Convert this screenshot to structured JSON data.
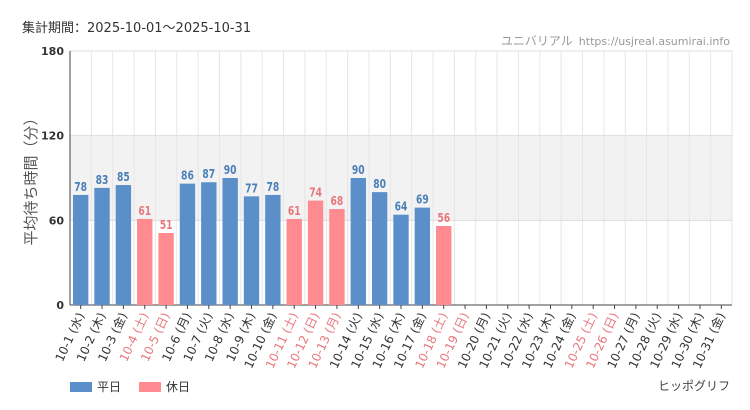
{
  "header": {
    "period_label": "集計期間：2025-10-01～2025-10-31",
    "source_name": "ユニバリアル",
    "source_url": "https://usjreal.asumirai.info",
    "brand": "ヒッポグリフ"
  },
  "colors": {
    "weekday": "#5b8fc9",
    "holiday": "#ff8a8f",
    "band": "#f2f2f2",
    "grid": "#e6e6e6",
    "axis": "#444444",
    "holiday_label": "#e8777c",
    "weekday_label": "#333333"
  },
  "legend": [
    {
      "name": "平日",
      "color": "#5b8fc9"
    },
    {
      "name": "休日",
      "color": "#ff8a8f"
    }
  ],
  "chart_data": {
    "type": "bar",
    "ylabel": "平均待ち時間（分）",
    "ylim": [
      0,
      180
    ],
    "yticks": [
      0,
      60,
      120,
      180
    ],
    "band": [
      60,
      120
    ],
    "categories": [
      "10-1 (水)",
      "10-2 (木)",
      "10-3 (金)",
      "10-4 (土)",
      "10-5 (日)",
      "10-6 (月)",
      "10-7 (火)",
      "10-8 (水)",
      "10-9 (木)",
      "10-10 (金)",
      "10-11 (土)",
      "10-12 (日)",
      "10-13 (月)",
      "10-14 (火)",
      "10-15 (水)",
      "10-16 (木)",
      "10-17 (金)",
      "10-18 (土)",
      "10-19 (日)",
      "10-20 (月)",
      "10-21 (火)",
      "10-22 (水)",
      "10-23 (木)",
      "10-24 (金)",
      "10-25 (土)",
      "10-26 (日)",
      "10-27 (月)",
      "10-28 (火)",
      "10-29 (水)",
      "10-30 (木)",
      "10-31 (金)"
    ],
    "holiday": [
      false,
      false,
      false,
      true,
      true,
      false,
      false,
      false,
      false,
      false,
      true,
      true,
      true,
      false,
      false,
      false,
      false,
      true,
      true,
      false,
      false,
      false,
      false,
      false,
      true,
      true,
      false,
      false,
      false,
      false,
      false
    ],
    "values": [
      78,
      83,
      85,
      61,
      51,
      86,
      87,
      90,
      77,
      78,
      61,
      74,
      68,
      90,
      80,
      64,
      69,
      56,
      null,
      null,
      null,
      null,
      null,
      null,
      null,
      null,
      null,
      null,
      null,
      null,
      null
    ]
  }
}
